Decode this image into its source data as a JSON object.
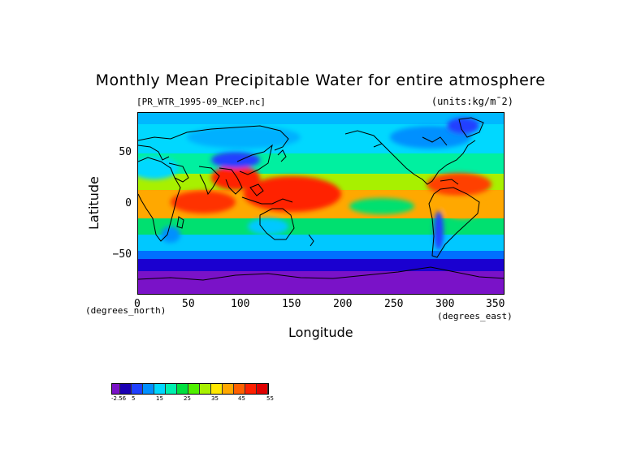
{
  "title": "Monthly Mean Precipitable Water for entire atmosphere",
  "file_label": "[PR_WTR_1995-09_NCEP.nc]",
  "units_label": "(units:kg/m¯2)",
  "map": {
    "x_axis_label": "Longitude",
    "y_axis_label": "Latitude",
    "x_units": "(degrees_east)",
    "y_units": "(degrees_north)",
    "x_ticks": [
      "0",
      "50",
      "100",
      "150",
      "200",
      "250",
      "300",
      "350"
    ],
    "y_ticks": [
      "50",
      "0",
      "−50"
    ],
    "x_range": [
      0,
      357.5
    ],
    "y_range": [
      -90,
      90
    ],
    "projection": "equirectangular",
    "colors": {
      "polar_south": "#7a12c8",
      "low": "#2020e0",
      "mid": "#00c8ff",
      "green": "#3cf03c",
      "high": "#ffe000",
      "max": "#ff2a00"
    }
  },
  "colorbar": {
    "tick_labels": [
      "-2.56",
      "5",
      "15",
      "25",
      "35",
      "45",
      "55"
    ],
    "colors": [
      "#7a12c8",
      "#1a00b4",
      "#2040ff",
      "#0090ff",
      "#00d8ff",
      "#00f0b0",
      "#00e040",
      "#50f000",
      "#a8f000",
      "#ffe800",
      "#ffa800",
      "#ff6000",
      "#ff2000",
      "#e00000"
    ]
  }
}
